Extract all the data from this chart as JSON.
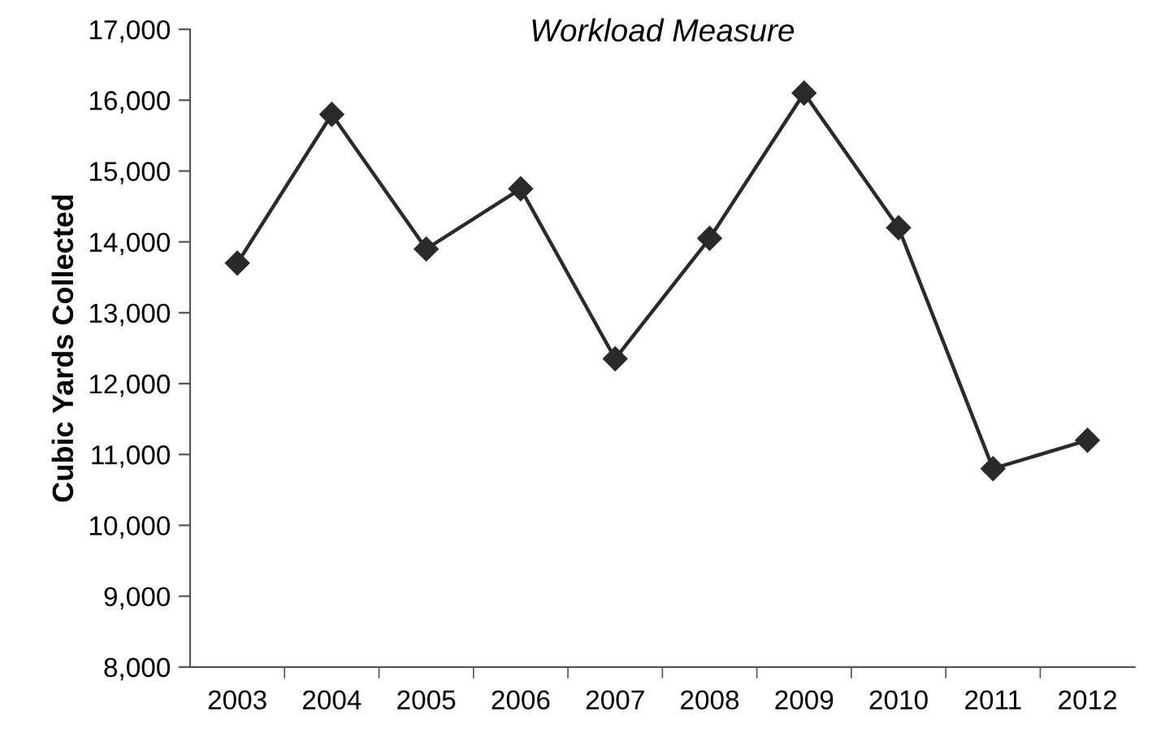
{
  "chart_data": {
    "type": "line",
    "title": "Workload Measure",
    "ylabel": "Cubic Yards Collected",
    "categories": [
      "2003",
      "2004",
      "2005",
      "2006",
      "2007",
      "2008",
      "2009",
      "2010",
      "2011",
      "2012"
    ],
    "series": [
      {
        "color": "#2a2a2a",
        "values": [
          13700,
          15800,
          13900,
          14750,
          12350,
          14050,
          16100,
          14200,
          10800,
          11200
        ]
      }
    ],
    "ylim": [
      8000,
      17000
    ],
    "yticks": [
      {
        "value": 8000,
        "label": "8,000"
      },
      {
        "value": 9000,
        "label": "9,000"
      },
      {
        "value": 10000,
        "label": "10,000"
      },
      {
        "value": 11000,
        "label": "11,000"
      },
      {
        "value": 12000,
        "label": "12,000"
      },
      {
        "value": 13000,
        "label": "13,000"
      },
      {
        "value": 14000,
        "label": "14,000"
      },
      {
        "value": 15000,
        "label": "15,000"
      },
      {
        "value": 16000,
        "label": "16,000"
      },
      {
        "value": 17000,
        "label": "17,000"
      }
    ],
    "marker": "diamond",
    "line_style": "solid",
    "grid": false,
    "legend": false
  }
}
